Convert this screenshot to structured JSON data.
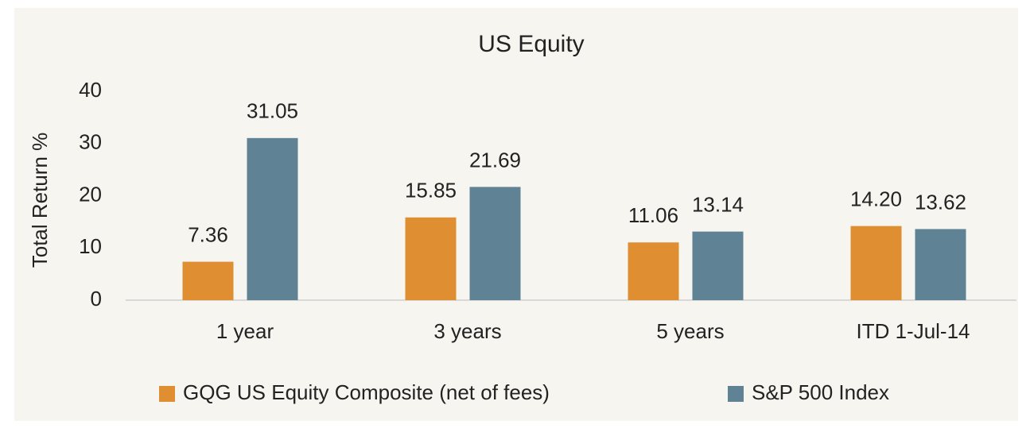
{
  "chart_data": {
    "type": "bar",
    "title": "US Equity",
    "ylabel": "Total Return %",
    "categories": [
      "1 year",
      "3 years",
      "5 years",
      "ITD 1-Jul-14"
    ],
    "series": [
      {
        "name": "GQG US Equity Composite (net of fees)",
        "color": "#e08e32",
        "values": [
          7.36,
          15.85,
          11.06,
          14.2
        ],
        "value_labels": [
          "7.36",
          "15.85",
          "11.06",
          "14.20"
        ]
      },
      {
        "name": "S&P 500 Index",
        "color": "#5f8294",
        "values": [
          31.05,
          21.69,
          13.14,
          13.62
        ],
        "value_labels": [
          "31.05",
          "21.69",
          "13.14",
          "13.62"
        ]
      }
    ],
    "ylim": [
      0,
      40
    ],
    "yticks": [
      0,
      10,
      20,
      30,
      40
    ],
    "grid": false,
    "legend": "bottom"
  }
}
